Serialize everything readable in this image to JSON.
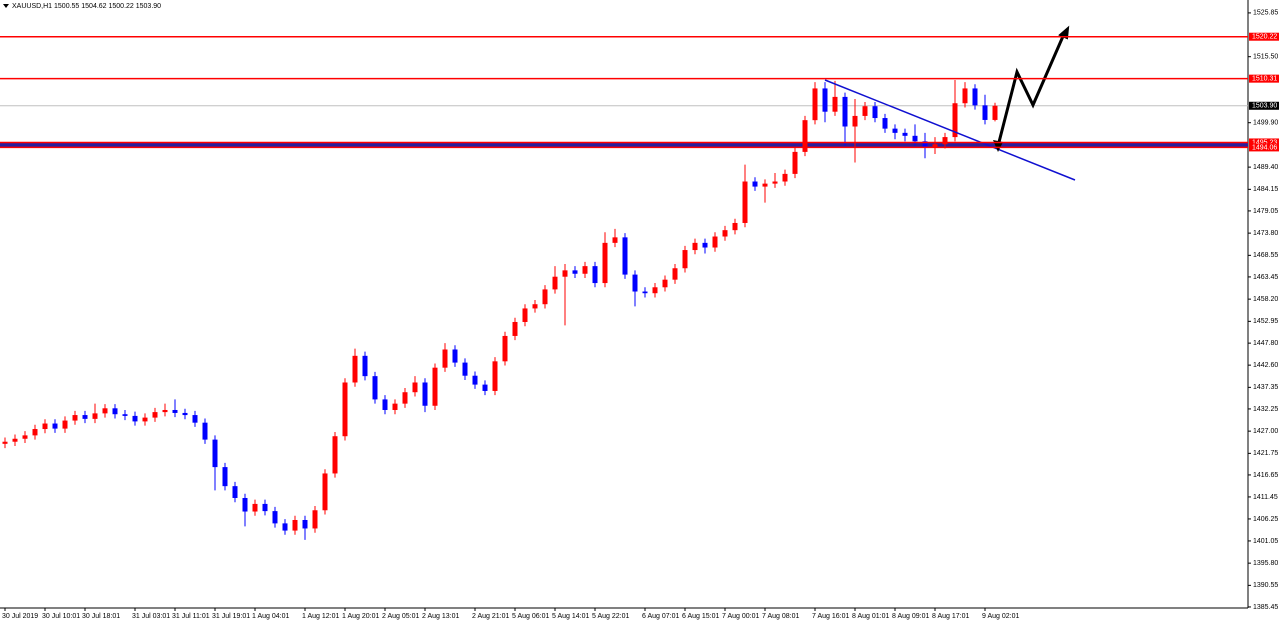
{
  "chart_data": {
    "type": "candlestick",
    "title": "XAUUSD,H1  1500.55 1504.62 1500.22 1503.90",
    "up_color": "#ff0000",
    "down_color": "#0000ff",
    "categories": [
      "30 Jul 2019",
      null,
      null,
      null,
      "30 Jul 10:01",
      null,
      null,
      null,
      "30 Jul 18:01",
      null,
      null,
      null,
      null,
      "31 Jul 03:01",
      null,
      null,
      null,
      "31 Jul 11:01",
      null,
      null,
      null,
      "31 Jul 19:01",
      null,
      null,
      null,
      "1 Aug 04:01",
      null,
      null,
      null,
      null,
      "1 Aug 12:01",
      null,
      null,
      null,
      "1 Aug 20:01",
      null,
      null,
      null,
      "2 Aug 05:01",
      null,
      null,
      null,
      "2 Aug 13:01",
      null,
      null,
      null,
      null,
      "2 Aug 21:01",
      null,
      null,
      null,
      "5 Aug 06:01",
      null,
      null,
      null,
      "5 Aug 14:01",
      null,
      null,
      null,
      "5 Aug 22:01",
      null,
      null,
      null,
      null,
      "6 Aug 07:01",
      null,
      null,
      null,
      "6 Aug 15:01",
      null,
      null,
      null,
      "7 Aug 00:01",
      null,
      null,
      null,
      "7 Aug 08:01",
      null,
      null,
      null,
      null,
      "7 Aug 16:01",
      null,
      null,
      null,
      "8 Aug 01:01",
      null,
      null,
      null,
      "8 Aug 09:01",
      null,
      null,
      null,
      "8 Aug 17:01",
      null,
      null,
      null,
      null,
      "9 Aug 02:01",
      null
    ],
    "open": [
      1424.0,
      1424.5,
      1425.2,
      1426.0,
      1427.5,
      1428.8,
      1427.6,
      1429.5,
      1430.8,
      1429.9,
      1431.2,
      1432.4,
      1431.0,
      1430.6,
      1429.3,
      1430.2,
      1431.5,
      1432.0,
      1431.3,
      1430.8,
      1429.0,
      1425.0,
      1418.5,
      1414.0,
      1411.2,
      1408.0,
      1409.8,
      1408.1,
      1405.2,
      1403.5,
      1406.0,
      1404.0,
      1408.3,
      1417.0,
      1425.8,
      1438.5,
      1444.8,
      1440.0,
      1434.5,
      1432.0,
      1433.5,
      1436.2,
      1438.5,
      1433.0,
      1442.0,
      1446.3,
      1443.2,
      1440.1,
      1438.0,
      1436.5,
      1443.5,
      1449.5,
      1452.8,
      1456.0,
      1457.0,
      1460.5,
      1463.5,
      1465.0,
      1464.2,
      1466.0,
      1462.0,
      1471.5,
      1472.8,
      1464.0,
      1460.0,
      1459.6,
      1461.0,
      1462.8,
      1465.5,
      1469.8,
      1471.5,
      1470.4,
      1473.0,
      1474.5,
      1476.2,
      1486.0,
      1484.8,
      1485.5,
      1486.0,
      1487.8,
      1493.0,
      1500.5,
      1508.0,
      1502.5,
      1506.0,
      1499.0,
      1501.5,
      1503.8,
      1501.0,
      1498.5,
      1497.5,
      1496.8,
      1495.5,
      1494.0,
      1494.8,
      1496.5,
      1504.5,
      1508.0,
      1504.0,
      1500.55
    ],
    "high": [
      1425.5,
      1426.2,
      1427.0,
      1428.5,
      1429.8,
      1429.8,
      1430.5,
      1431.8,
      1431.8,
      1433.5,
      1433.4,
      1433.4,
      1432.0,
      1431.6,
      1431.2,
      1432.5,
      1433.5,
      1434.5,
      1432.3,
      1431.8,
      1430.0,
      1426.0,
      1419.5,
      1415.0,
      1412.2,
      1410.8,
      1410.8,
      1409.1,
      1406.2,
      1407.0,
      1407.0,
      1409.3,
      1418.0,
      1426.8,
      1439.5,
      1446.5,
      1445.8,
      1441.0,
      1435.5,
      1434.5,
      1437.2,
      1440.0,
      1439.5,
      1443.0,
      1447.8,
      1447.3,
      1444.2,
      1441.1,
      1439.0,
      1444.5,
      1450.5,
      1453.8,
      1457.0,
      1458.0,
      1461.5,
      1466.0,
      1466.5,
      1466.0,
      1467.0,
      1467.0,
      1474.0,
      1474.8,
      1473.8,
      1465.0,
      1461.0,
      1462.0,
      1463.8,
      1466.5,
      1470.8,
      1472.5,
      1472.5,
      1474.0,
      1475.5,
      1477.2,
      1490.0,
      1487.0,
      1486.5,
      1488.0,
      1488.8,
      1494.0,
      1501.5,
      1509.5,
      1509.5,
      1509.8,
      1507.0,
      1505.5,
      1504.8,
      1504.8,
      1502.0,
      1499.5,
      1498.5,
      1499.5,
      1497.5,
      1496.5,
      1497.5,
      1510.0,
      1509.5,
      1509.0,
      1506.5,
      1504.62
    ],
    "low": [
      1423.0,
      1423.5,
      1424.2,
      1425.0,
      1426.5,
      1426.6,
      1426.6,
      1428.5,
      1428.9,
      1428.9,
      1430.2,
      1430.0,
      1429.6,
      1428.3,
      1428.3,
      1429.2,
      1430.5,
      1430.3,
      1429.8,
      1428.0,
      1424.0,
      1413.0,
      1413.0,
      1410.2,
      1404.5,
      1407.0,
      1407.1,
      1404.2,
      1402.5,
      1402.5,
      1401.3,
      1403.0,
      1407.3,
      1416.0,
      1424.8,
      1437.5,
      1439.0,
      1433.5,
      1431.0,
      1431.0,
      1432.5,
      1435.2,
      1431.5,
      1432.0,
      1441.0,
      1442.2,
      1439.1,
      1437.0,
      1435.5,
      1435.5,
      1442.5,
      1448.5,
      1451.8,
      1455.0,
      1456.0,
      1459.5,
      1452.0,
      1463.2,
      1463.2,
      1461.0,
      1461.0,
      1470.5,
      1463.0,
      1456.5,
      1458.6,
      1458.6,
      1460.0,
      1461.8,
      1464.5,
      1468.8,
      1469.0,
      1469.4,
      1472.0,
      1473.5,
      1475.2,
      1483.8,
      1481.0,
      1484.5,
      1485.0,
      1486.8,
      1492.0,
      1499.5,
      1500.0,
      1501.5,
      1494.5,
      1490.5,
      1500.5,
      1500.0,
      1497.5,
      1496.0,
      1495.5,
      1494.5,
      1491.5,
      1492.5,
      1493.8,
      1495.5,
      1503.5,
      1503.0,
      1499.5,
      1500.22
    ],
    "close": [
      1424.5,
      1425.2,
      1426.0,
      1427.5,
      1428.8,
      1427.6,
      1429.5,
      1430.8,
      1429.9,
      1431.2,
      1432.4,
      1431.0,
      1430.6,
      1429.3,
      1430.2,
      1431.5,
      1432.0,
      1431.3,
      1430.8,
      1429.0,
      1425.0,
      1418.5,
      1414.0,
      1411.2,
      1408.0,
      1409.8,
      1408.1,
      1405.2,
      1403.5,
      1406.0,
      1404.0,
      1408.3,
      1417.0,
      1425.8,
      1438.5,
      1444.8,
      1440.0,
      1434.5,
      1432.0,
      1433.5,
      1436.2,
      1438.5,
      1433.0,
      1442.0,
      1446.3,
      1443.2,
      1440.1,
      1438.0,
      1436.5,
      1443.5,
      1449.5,
      1452.8,
      1456.0,
      1457.0,
      1460.5,
      1463.5,
      1465.0,
      1464.2,
      1466.0,
      1462.0,
      1471.5,
      1472.8,
      1464.0,
      1460.0,
      1459.6,
      1461.0,
      1462.8,
      1465.5,
      1469.8,
      1471.5,
      1470.4,
      1473.0,
      1474.5,
      1476.2,
      1486.0,
      1484.8,
      1485.5,
      1486.0,
      1487.8,
      1493.0,
      1500.5,
      1508.0,
      1502.5,
      1506.0,
      1499.0,
      1501.5,
      1503.8,
      1501.0,
      1498.5,
      1497.5,
      1496.8,
      1495.5,
      1494.0,
      1494.8,
      1496.5,
      1504.5,
      1508.0,
      1504.0,
      1500.55,
      1503.9
    ],
    "ylim": [
      1385.2,
      1528.9
    ],
    "yticks": [
      1525.85,
      {
        "value": 1515.5,
        "label": "1515.50"
      },
      {
        "value": 1499.9,
        "label": "1499.90"
      },
      {
        "value": 1489.4,
        "label": "1489.40"
      },
      1484.15,
      1479.05,
      {
        "value": 1473.8,
        "label": "1473.80"
      },
      1468.55,
      1463.45,
      {
        "value": 1458.2,
        "label": "1458.20"
      },
      1452.95,
      {
        "value": 1447.8,
        "label": "1447.80"
      },
      {
        "value": 1442.6,
        "label": "1442.60"
      },
      1437.35,
      1432.25,
      {
        "value": 1427,
        "label": "1427.00"
      },
      1421.75,
      1416.65,
      1411.45,
      1406.25,
      1401.05,
      {
        "value": 1395.8,
        "label": "1395.80"
      },
      1390.55,
      1385.45
    ],
    "price_lines": [
      {
        "value": 1520.22,
        "color": "#ff0000"
      },
      {
        "value": 1510.31,
        "color": "#ff0000"
      },
      {
        "value": 1495.23,
        "color": "#ff0000"
      },
      {
        "value": 1494.06,
        "color": "#ff0000"
      }
    ],
    "band_color": "#2a1f9c",
    "current_price": {
      "value": 1503.9,
      "label": "1503.90"
    }
  }
}
